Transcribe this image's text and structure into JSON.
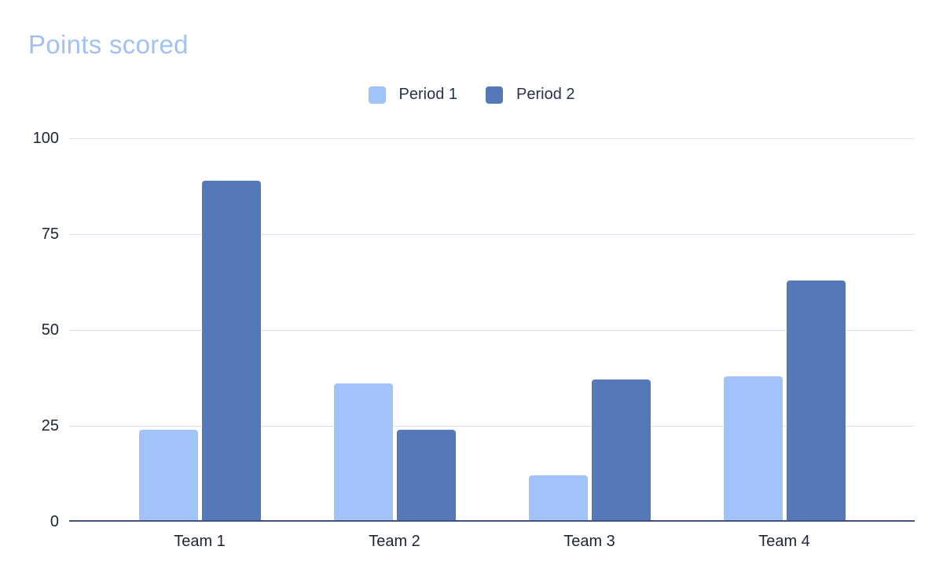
{
  "chart": {
    "title_color": "#a2c1f2",
    "colors": {
      "background": "#ffffff",
      "gridline": "#dae3f3",
      "axis_line": "#42537a",
      "tick_text": "#1c2636",
      "legend_text": "#24334e",
      "series_light": "#a2c3f9",
      "series_dark": "#5578b8"
    }
  },
  "chart_data": {
    "type": "bar",
    "title": "Points scored",
    "categories": [
      "Team 1",
      "Team 2",
      "Team 3",
      "Team 4"
    ],
    "series": [
      {
        "name": "Period 1",
        "values": [
          24,
          36,
          12,
          38
        ],
        "color": "#a2c3f9"
      },
      {
        "name": "Period 2",
        "values": [
          89,
          24,
          37,
          63
        ],
        "color": "#5578b8"
      }
    ],
    "xlabel": "",
    "ylabel": "",
    "ylim": [
      0,
      100
    ],
    "yticks": [
      0,
      25,
      50,
      75,
      100
    ],
    "grid": true,
    "legend_position": "top"
  }
}
